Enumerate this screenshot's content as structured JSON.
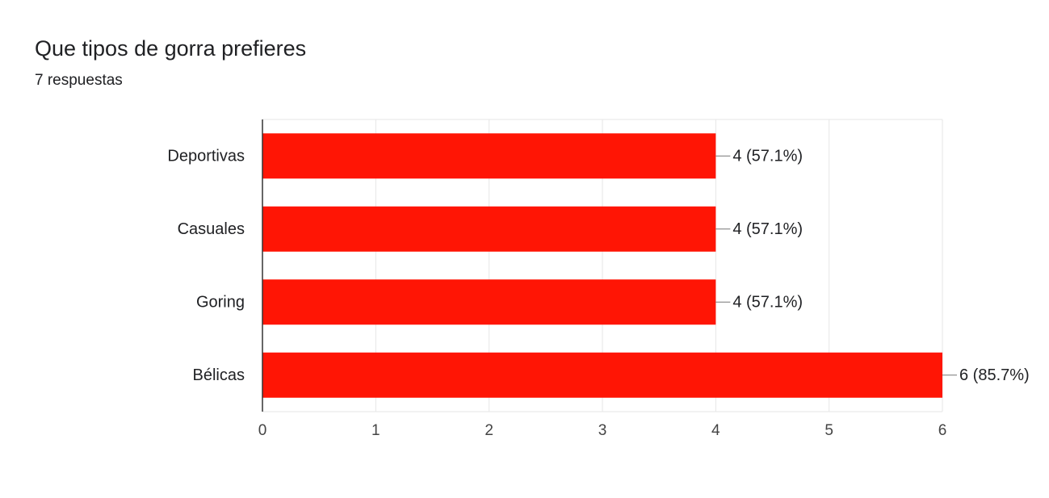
{
  "chart_data": {
    "type": "bar",
    "orientation": "horizontal",
    "title": "Que tipos de gorra prefieres",
    "subtitle": "7 respuestas",
    "categories": [
      "Deportivas",
      "Casuales",
      "Goring",
      "Bélicas"
    ],
    "values": [
      4,
      4,
      4,
      6
    ],
    "value_labels": [
      "4 (57.1%)",
      "4 (57.1%)",
      "4 (57.1%)",
      "6 (85.7%)"
    ],
    "color": "#ff1505",
    "xlim": [
      0,
      6
    ],
    "xticks": [
      0,
      1,
      2,
      3,
      4,
      5,
      6
    ],
    "grid": true
  }
}
